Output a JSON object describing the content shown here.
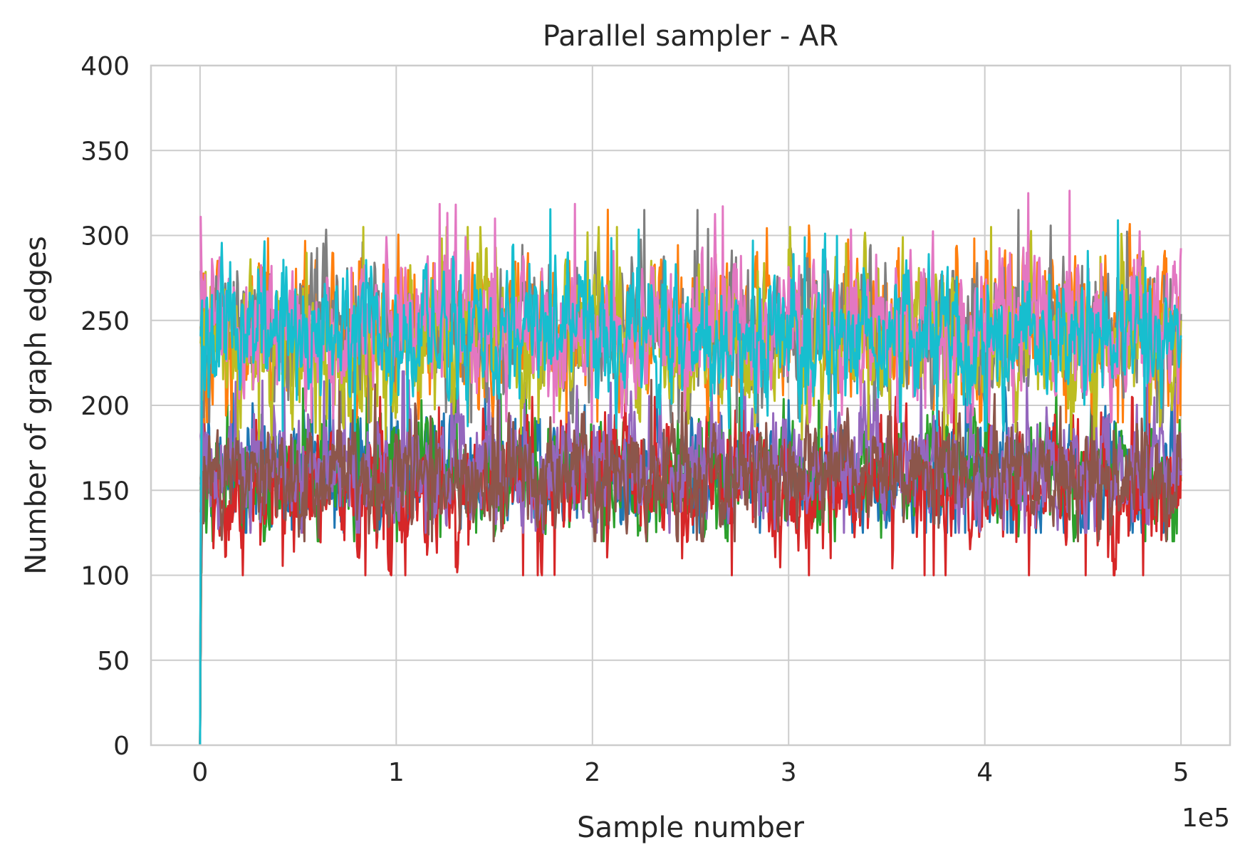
{
  "chart_data": {
    "type": "line",
    "title": "Parallel sampler - AR",
    "xlabel": "Sample number",
    "ylabel": "Number of graph edges",
    "x_offset_text": "1e5",
    "xlim": [
      -0.25,
      5.25
    ],
    "ylim": [
      0,
      400
    ],
    "x_ticks": [
      0,
      1,
      2,
      3,
      4,
      5
    ],
    "x_tick_labels": [
      "0",
      "1",
      "2",
      "3",
      "4",
      "5"
    ],
    "y_ticks": [
      0,
      50,
      100,
      150,
      200,
      250,
      300,
      350,
      400
    ],
    "y_tick_labels": [
      "0",
      "50",
      "100",
      "150",
      "200",
      "250",
      "300",
      "350",
      "400"
    ],
    "grid": true,
    "legend": "none",
    "x_range": [
      0,
      5
    ],
    "series": [
      {
        "color": "#1f77b4",
        "start": 0,
        "mean": 160,
        "spread": 16,
        "min": 125,
        "max": 215
      },
      {
        "color": "#2ca02c",
        "start": 0,
        "mean": 158,
        "spread": 16,
        "min": 120,
        "max": 210
      },
      {
        "color": "#d62728",
        "start": 0,
        "mean": 152,
        "spread": 18,
        "min": 100,
        "max": 205
      },
      {
        "color": "#9467bd",
        "start": 0,
        "mean": 165,
        "spread": 17,
        "min": 125,
        "max": 220
      },
      {
        "color": "#8c564b",
        "start": 0,
        "mean": 160,
        "spread": 15,
        "min": 120,
        "max": 215
      },
      {
        "color": "#ff7f0e",
        "start": 0,
        "mean": 245,
        "spread": 20,
        "min": 190,
        "max": 322
      },
      {
        "color": "#7f7f7f",
        "start": 0,
        "mean": 245,
        "spread": 20,
        "min": 190,
        "max": 315
      },
      {
        "color": "#bcbd22",
        "start": 0,
        "mean": 238,
        "spread": 21,
        "min": 180,
        "max": 305
      },
      {
        "color": "#e377c2",
        "start": 0,
        "mean": 248,
        "spread": 21,
        "min": 190,
        "max": 349
      },
      {
        "color": "#17becf",
        "start": 0,
        "mean": 240,
        "spread": 19,
        "min": 185,
        "max": 318
      }
    ]
  }
}
